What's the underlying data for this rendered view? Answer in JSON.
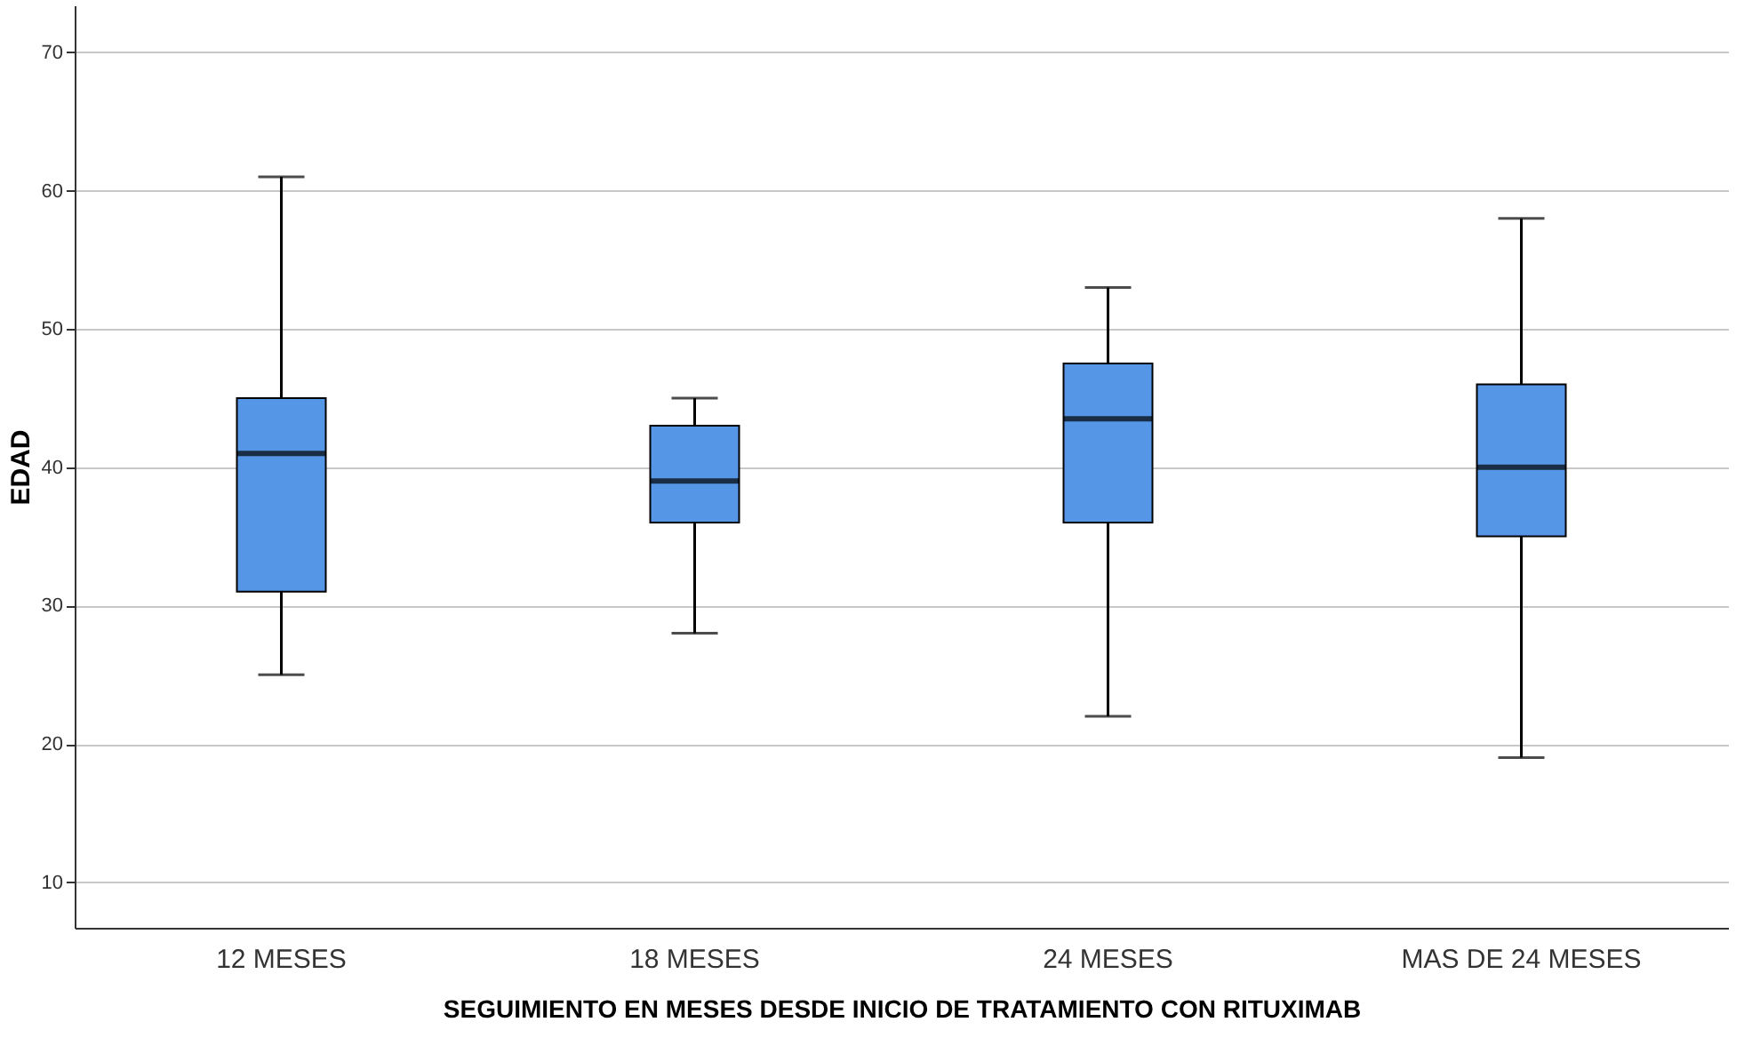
{
  "chart_data": {
    "type": "box",
    "xlabel": "SEGUIMIENTO EN MESES DESDE INICIO DE TRATAMIENTO CON RITUXIMAB",
    "ylabel": "EDAD",
    "categories": [
      "12 MESES",
      "18 MESES",
      "24 MESES",
      "MAS DE 24 MESES"
    ],
    "boxes": [
      {
        "low": 25,
        "q1": 31,
        "median": 41,
        "q3": 45,
        "high": 61
      },
      {
        "low": 28,
        "q1": 36,
        "median": 39,
        "q3": 43,
        "high": 45
      },
      {
        "low": 22,
        "q1": 36,
        "median": 43.5,
        "q3": 47.5,
        "high": 53
      },
      {
        "low": 19,
        "q1": 35,
        "median": 40,
        "q3": 46,
        "high": 58
      }
    ],
    "color": "#5596e6",
    "ylim": [
      6.7,
      73.4
    ],
    "yticks": [
      10,
      20,
      30,
      40,
      50,
      60,
      70
    ],
    "grid": "y"
  }
}
